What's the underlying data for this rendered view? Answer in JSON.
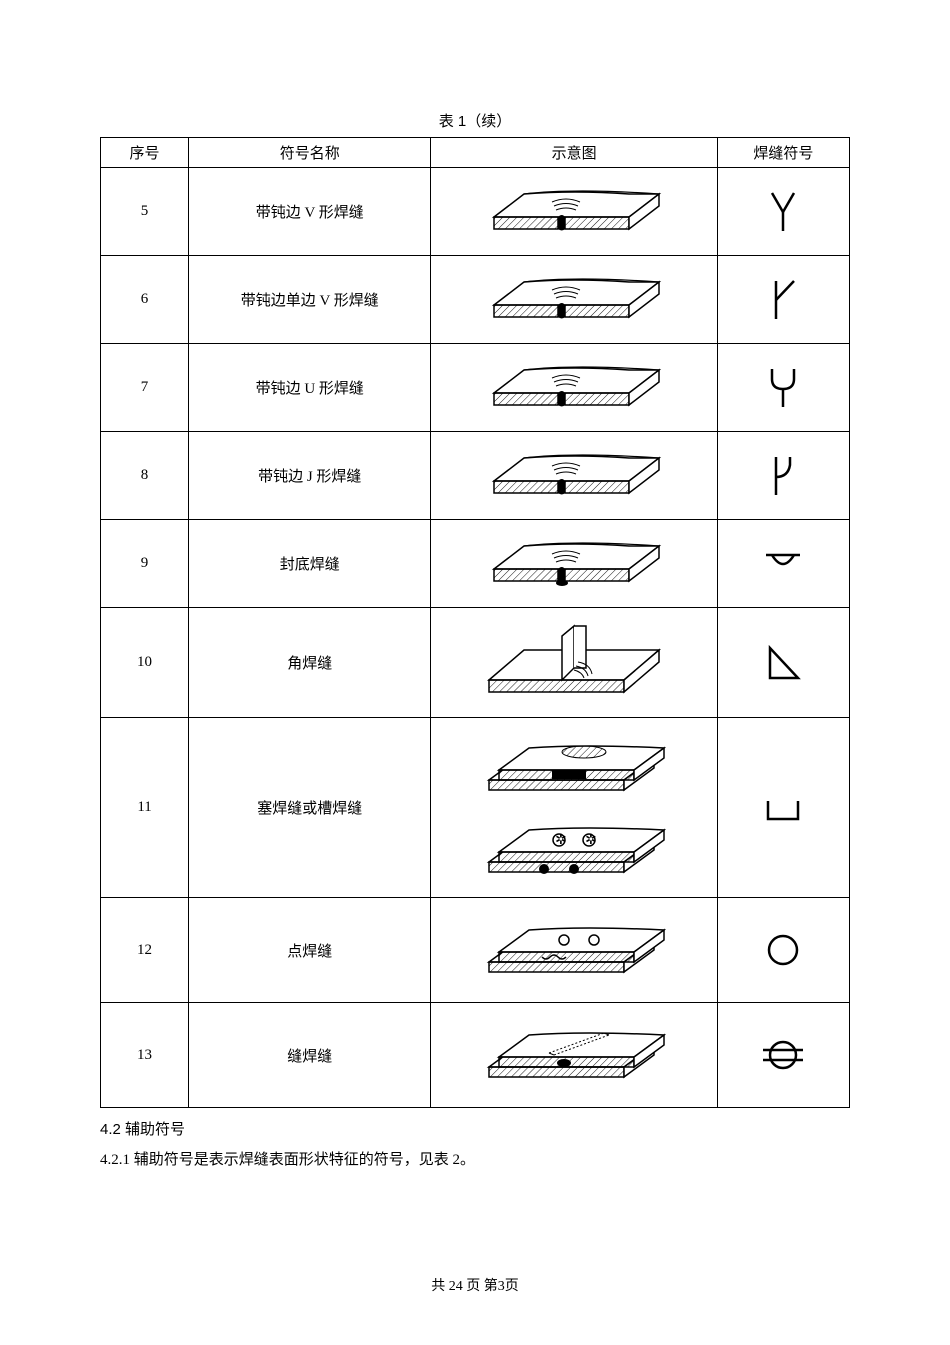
{
  "caption": "表 1（续）",
  "headers": {
    "seq": "序号",
    "name": "符号名称",
    "diagram": "示意图",
    "symbol": "焊缝符号"
  },
  "rows": [
    {
      "seq": "5",
      "name": "带钝边 V 形焊缝",
      "symbol_type": "Y_v",
      "diagram_type": "butt_bead"
    },
    {
      "seq": "6",
      "name": "带钝边单边 V 形焊缝",
      "symbol_type": "Y_half",
      "diagram_type": "butt_bead"
    },
    {
      "seq": "7",
      "name": "带钝边 U 形焊缝",
      "symbol_type": "Y_u",
      "diagram_type": "butt_bead"
    },
    {
      "seq": "8",
      "name": "带钝边 J 形焊缝",
      "symbol_type": "J_shape",
      "diagram_type": "butt_bead"
    },
    {
      "seq": "9",
      "name": "封底焊缝",
      "symbol_type": "back_weld",
      "diagram_type": "butt_back"
    },
    {
      "seq": "10",
      "name": "角焊缝",
      "symbol_type": "fillet",
      "diagram_type": "fillet_t",
      "row_h": "tall"
    },
    {
      "seq": "11",
      "name": "塞焊缝或槽焊缝",
      "symbol_type": "plug",
      "diagram_type": "plug_slot",
      "row_h": "xtall"
    },
    {
      "seq": "12",
      "name": "点焊缝",
      "symbol_type": "spot",
      "diagram_type": "spot_weld",
      "row_h": "medtall"
    },
    {
      "seq": "13",
      "name": "缝焊缝",
      "symbol_type": "seam",
      "diagram_type": "seam_weld",
      "row_h": "medtall"
    }
  ],
  "section": {
    "heading_num": "4.2",
    "heading_title": "辅助符号",
    "para_num": "4.2.1",
    "para_text": "辅助符号是表示焊缝表面形状特征的符号，见表 2。"
  },
  "footer": {
    "total_pages": "24",
    "page": "3",
    "prefix": "共",
    "mid": "页  第",
    "suffix": "页"
  },
  "colors": {
    "stroke": "#000000",
    "fill_bg": "#ffffff"
  }
}
